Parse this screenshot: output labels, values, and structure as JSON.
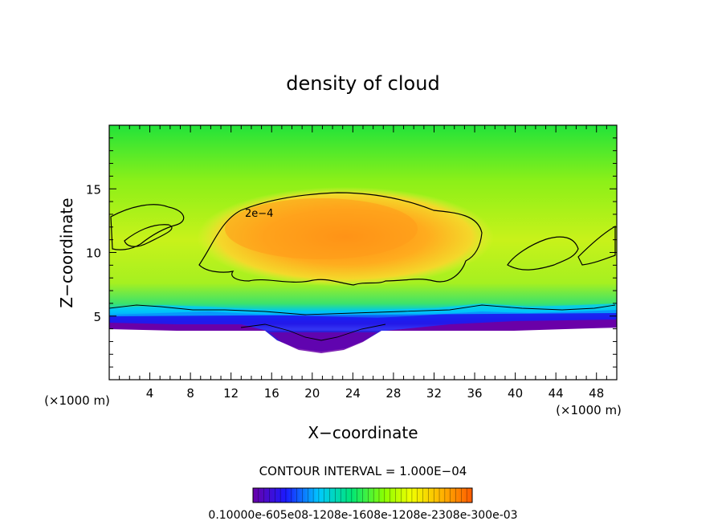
{
  "chart_data": {
    "type": "heatmap",
    "title": "density of cloud",
    "xlabel": "X−coordinate",
    "ylabel": "Z−coordinate",
    "x_unit_left": "(×1000 m)",
    "x_unit_right": "(×1000 m)",
    "xlim": [
      0,
      50
    ],
    "ylim": [
      0,
      20
    ],
    "x_ticks": [
      4,
      8,
      12,
      16,
      20,
      24,
      28,
      32,
      36,
      40,
      44,
      48
    ],
    "y_ticks": [
      5,
      10,
      15
    ],
    "contour_interval_text": "CONTOUR INTERVAL = 1.000E−04",
    "contour_label": "2e−4",
    "colorbar_labels_text": "0.10000e-605e08-1208e-1608e-1208e-2308e-300e-03",
    "cloud_base_km": 4.2,
    "max_density_approx": 0.00035,
    "colormap": [
      "#6a00a8",
      "#1a1aff",
      "#00c8ff",
      "#00e676",
      "#8cff00",
      "#f0ff00",
      "#ffb400",
      "#ff5a00"
    ]
  }
}
